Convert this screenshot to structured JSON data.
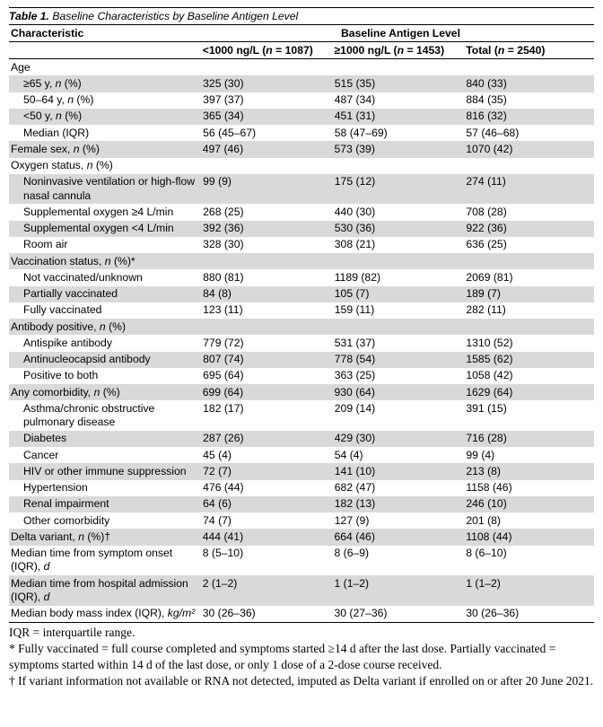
{
  "title_prefix": "Table 1.",
  "title_rest": " Baseline Characteristics by Baseline Antigen Level",
  "header_left": "Characteristic",
  "header_span": "Baseline Antigen Level",
  "subheaders": {
    "a_html": "<1000 ng/L (<span class='ital'>n</span> = 1087)",
    "b_html": "≥1000 ng/L (<span class='ital'>n</span> = 1453)",
    "c_html": "Total (<span class='ital'>n</span> = 2540)"
  },
  "rows": [
    {
      "shade": false,
      "indent": 0,
      "label": "Age",
      "a": "",
      "b": "",
      "c": ""
    },
    {
      "shade": true,
      "indent": 1,
      "label_html": "≥65 y, <span class='ital'>n</span> (%)",
      "a": "325 (30)",
      "b": "515 (35)",
      "c": "840 (33)"
    },
    {
      "shade": false,
      "indent": 1,
      "label_html": "50–64 y, <span class='ital'>n</span> (%)",
      "a": "397 (37)",
      "b": "487 (34)",
      "c": "884 (35)"
    },
    {
      "shade": true,
      "indent": 1,
      "label_html": "<50 y, <span class='ital'>n</span> (%)",
      "a": "365 (34)",
      "b": "451 (31)",
      "c": "816 (32)"
    },
    {
      "shade": false,
      "indent": 1,
      "label": "Median (IQR)",
      "a": "56 (45–67)",
      "b": "58 (47–69)",
      "c": "57 (46–68)"
    },
    {
      "shade": true,
      "indent": 0,
      "label_html": "Female sex, <span class='ital'>n</span> (%)",
      "a": "497 (46)",
      "b": "573 (39)",
      "c": "1070 (42)"
    },
    {
      "shade": false,
      "indent": 0,
      "label_html": "Oxygen status, <span class='ital'>n</span> (%)",
      "a": "",
      "b": "",
      "c": ""
    },
    {
      "shade": true,
      "indent": 1,
      "label": "Noninvasive ventilation or high-flow nasal cannula",
      "a": "99 (9)",
      "b": "175 (12)",
      "c": "274 (11)"
    },
    {
      "shade": false,
      "indent": 1,
      "label": "Supplemental oxygen ≥4 L/min",
      "a": "268 (25)",
      "b": "440 (30)",
      "c": "708 (28)"
    },
    {
      "shade": true,
      "indent": 1,
      "label": "Supplemental oxygen <4 L/min",
      "a": "392 (36)",
      "b": "530 (36)",
      "c": "922 (36)"
    },
    {
      "shade": false,
      "indent": 1,
      "label": "Room air",
      "a": "328 (30)",
      "b": "308 (21)",
      "c": "636 (25)"
    },
    {
      "shade": true,
      "indent": 0,
      "label_html": "Vaccination status, <span class='ital'>n</span> (%)*",
      "a": "",
      "b": "",
      "c": ""
    },
    {
      "shade": false,
      "indent": 1,
      "label": "Not vaccinated/unknown",
      "a": "880 (81)",
      "b": "1189 (82)",
      "c": "2069 (81)"
    },
    {
      "shade": true,
      "indent": 1,
      "label": "Partially vaccinated",
      "a": "84 (8)",
      "b": "105 (7)",
      "c": "189 (7)"
    },
    {
      "shade": false,
      "indent": 1,
      "label": "Fully vaccinated",
      "a": "123 (11)",
      "b": "159 (11)",
      "c": "282 (11)"
    },
    {
      "shade": true,
      "indent": 0,
      "label_html": "Antibody positive, <span class='ital'>n</span> (%)",
      "a": "",
      "b": "",
      "c": ""
    },
    {
      "shade": false,
      "indent": 1,
      "label": "Antispike antibody",
      "a": "779 (72)",
      "b": "531 (37)",
      "c": "1310 (52)"
    },
    {
      "shade": true,
      "indent": 1,
      "label": "Antinucleocapsid antibody",
      "a": "807 (74)",
      "b": "778 (54)",
      "c": "1585 (62)"
    },
    {
      "shade": false,
      "indent": 1,
      "label": "Positive to both",
      "a": "695 (64)",
      "b": "363 (25)",
      "c": "1058 (42)"
    },
    {
      "shade": true,
      "indent": 0,
      "label_html": "Any comorbidity, <span class='ital'>n</span> (%)",
      "a": "699 (64)",
      "b": "930 (64)",
      "c": "1629 (64)"
    },
    {
      "shade": false,
      "indent": 1,
      "label": "Asthma/chronic obstructive pulmonary disease",
      "a": "182 (17)",
      "b": "209 (14)",
      "c": "391 (15)"
    },
    {
      "shade": true,
      "indent": 1,
      "label": "Diabetes",
      "a": "287 (26)",
      "b": "429 (30)",
      "c": "716 (28)"
    },
    {
      "shade": false,
      "indent": 1,
      "label": "Cancer",
      "a": "45 (4)",
      "b": "54 (4)",
      "c": "99 (4)"
    },
    {
      "shade": true,
      "indent": 1,
      "label": "HIV or other immune suppression",
      "a": "72 (7)",
      "b": "141 (10)",
      "c": "213 (8)"
    },
    {
      "shade": false,
      "indent": 1,
      "label": "Hypertension",
      "a": "476 (44)",
      "b": "682 (47)",
      "c": "1158 (46)"
    },
    {
      "shade": true,
      "indent": 1,
      "label": "Renal impairment",
      "a": "64 (6)",
      "b": "182 (13)",
      "c": "246 (10)"
    },
    {
      "shade": false,
      "indent": 1,
      "label": "Other comorbidity",
      "a": "74 (7)",
      "b": "127 (9)",
      "c": "201 (8)"
    },
    {
      "shade": true,
      "indent": 0,
      "label_html": "Delta variant, <span class='ital'>n</span> (%)†",
      "a": "444 (41)",
      "b": "664 (46)",
      "c": "1108 (44)"
    },
    {
      "shade": false,
      "indent": 0,
      "label_html": "Median time from symptom onset (IQR), <span class='ital'>d</span>",
      "a": "8 (5–10)",
      "b": "8 (6–9)",
      "c": "8 (6–10)"
    },
    {
      "shade": true,
      "indent": 0,
      "label_html": "Median time from hospital admission (IQR), <span class='ital'>d</span>",
      "a": "2 (1–2)",
      "b": "1 (1–2)",
      "c": "1 (1–2)"
    },
    {
      "shade": false,
      "indent": 0,
      "label_html": "Median body mass index (IQR), <span class='ital'>kg/m²</span>",
      "a": "30 (26–36)",
      "b": "30 (27–36)",
      "c": "30 (26–36)"
    }
  ],
  "footnotes": [
    "IQR = interquartile range.",
    "* Fully vaccinated = full course completed and symptoms started ≥14 d after the last dose. Partially vaccinated = symptoms started within 14 d of the last dose, or only 1 dose of a 2-dose course received.",
    "† If variant information not available or RNA not detected, imputed as Delta variant if enrolled on or after 20 June 2021."
  ]
}
